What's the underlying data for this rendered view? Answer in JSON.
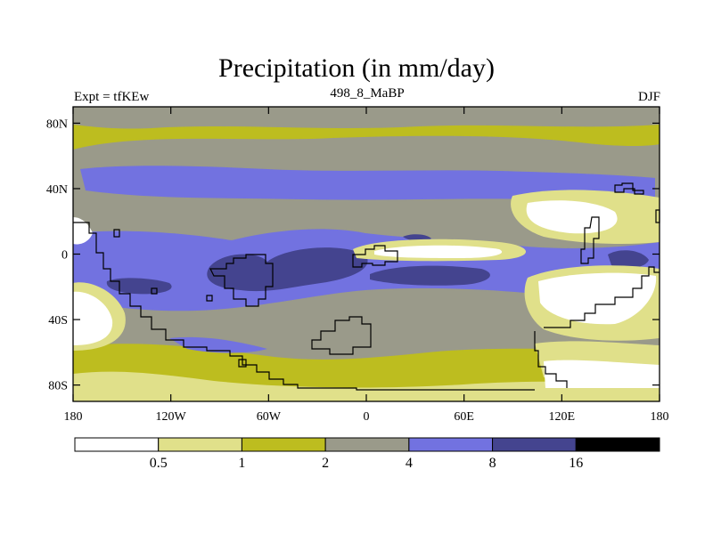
{
  "chart_data": {
    "type": "heatmap",
    "title": "Precipitation (in mm/day)",
    "left_label": "Expt = tfKEw",
    "center_label": "498_8_MaBP",
    "right_label": "DJF",
    "x_ticks": [
      "180",
      "120W",
      "60W",
      "0",
      "60E",
      "120E",
      "180"
    ],
    "x_tick_values": [
      -180,
      -120,
      -60,
      0,
      60,
      120,
      180
    ],
    "y_ticks": [
      "80N",
      "40N",
      "0",
      "40S",
      "80S"
    ],
    "y_tick_values": [
      80,
      40,
      0,
      -40,
      -80
    ],
    "xlim": [
      -180,
      180
    ],
    "ylim": [
      -90,
      90
    ],
    "colorbar": {
      "levels": [
        "0.5",
        "1",
        "2",
        "4",
        "8",
        "16"
      ],
      "colors": [
        "#ffffff",
        "#e0e08a",
        "#bdbd1f",
        "#9a9a8a",
        "#7272e0",
        "#44448f",
        "#000000"
      ]
    },
    "dominant_band_by_latitude": [
      {
        "lat": 85,
        "level": "2-4"
      },
      {
        "lat": 75,
        "level": "1-2"
      },
      {
        "lat": 65,
        "level": "2-4"
      },
      {
        "lat": 45,
        "level": "4-8"
      },
      {
        "lat": 25,
        "level": "2-4"
      },
      {
        "lat": 5,
        "level": "4-8"
      },
      {
        "lat": -15,
        "level": "8-16"
      },
      {
        "lat": -35,
        "level": "2-4"
      },
      {
        "lat": -60,
        "level": "2-4"
      },
      {
        "lat": -80,
        "level": "1-2"
      }
    ]
  }
}
